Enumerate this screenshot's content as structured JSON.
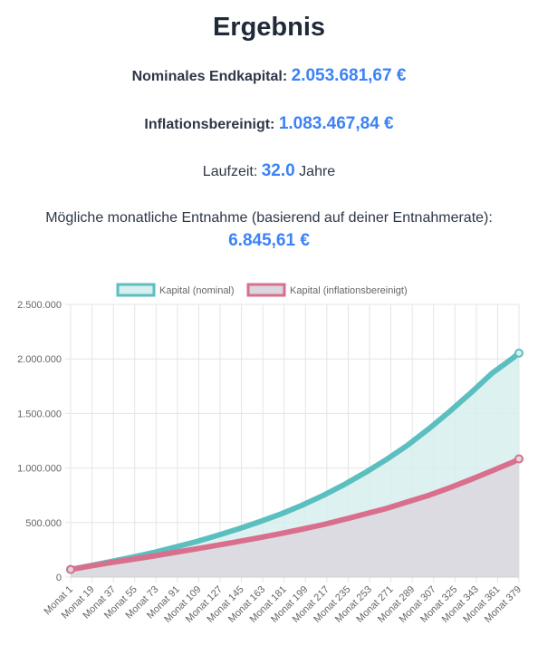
{
  "result": {
    "title": "Ergebnis",
    "nominal_label": "Nominales Endkapital:",
    "nominal_value": "2.053.681,67 €",
    "inflation_label": "Inflationsbereinigt:",
    "inflation_value": "1.083.467,84 €",
    "duration_label": "Laufzeit:",
    "duration_value": "32.0",
    "duration_unit": "Jahre",
    "withdrawal_label": "Mögliche monatliche Entnahme (basierend auf deiner Entnahmerate):",
    "withdrawal_value": "6.845,61 €"
  },
  "colors": {
    "accent": "#3b82f6",
    "nominal_line": "#5bbfc0",
    "nominal_fill": "#d7efee",
    "inflation_line": "#d96f8c",
    "inflation_fill": "#dad7de"
  },
  "chart_data": {
    "type": "area",
    "x_ticks": [
      "Monat 1",
      "Monat 19",
      "Monat 37",
      "Monat 55",
      "Monat 73",
      "Monat 91",
      "Monat 109",
      "Monat 127",
      "Monat 145",
      "Monat 163",
      "Monat 181",
      "Monat 199",
      "Monat 217",
      "Monat 235",
      "Monat 253",
      "Monat 271",
      "Monat 289",
      "Monat 307",
      "Monat 325",
      "Monat 343",
      "Monat 361",
      "Monat 379"
    ],
    "x_range": [
      1,
      384
    ],
    "y_ticks": [
      "0",
      "500.000",
      "1.000.000",
      "1.500.000",
      "2.000.000",
      "2.500.000"
    ],
    "ylim": [
      0,
      2500000
    ],
    "legend_position": "top-center",
    "grid": true,
    "series": [
      {
        "name": "Kapital (nominal)",
        "x": [
          1,
          19,
          37,
          55,
          73,
          91,
          109,
          127,
          145,
          163,
          181,
          199,
          217,
          235,
          253,
          271,
          289,
          307,
          325,
          343,
          361,
          379,
          384
        ],
        "values": [
          70000,
          107000,
          145000,
          185000,
          228000,
          277000,
          327000,
          384000,
          444000,
          510000,
          580000,
          660000,
          750000,
          850000,
          960000,
          1080000,
          1210000,
          1360000,
          1520000,
          1690000,
          1870000,
          2010000,
          2053682
        ]
      },
      {
        "name": "Kapital (inflationsbereinigt)",
        "x": [
          1,
          19,
          37,
          55,
          73,
          91,
          109,
          127,
          145,
          163,
          181,
          199,
          217,
          235,
          253,
          271,
          289,
          307,
          325,
          343,
          361,
          379,
          384
        ],
        "values": [
          70000,
          103000,
          135000,
          165000,
          195000,
          228000,
          260000,
          293000,
          327000,
          363000,
          400000,
          440000,
          482000,
          530000,
          580000,
          630000,
          690000,
          750000,
          820000,
          895000,
          975000,
          1055000,
          1083468
        ]
      }
    ]
  }
}
